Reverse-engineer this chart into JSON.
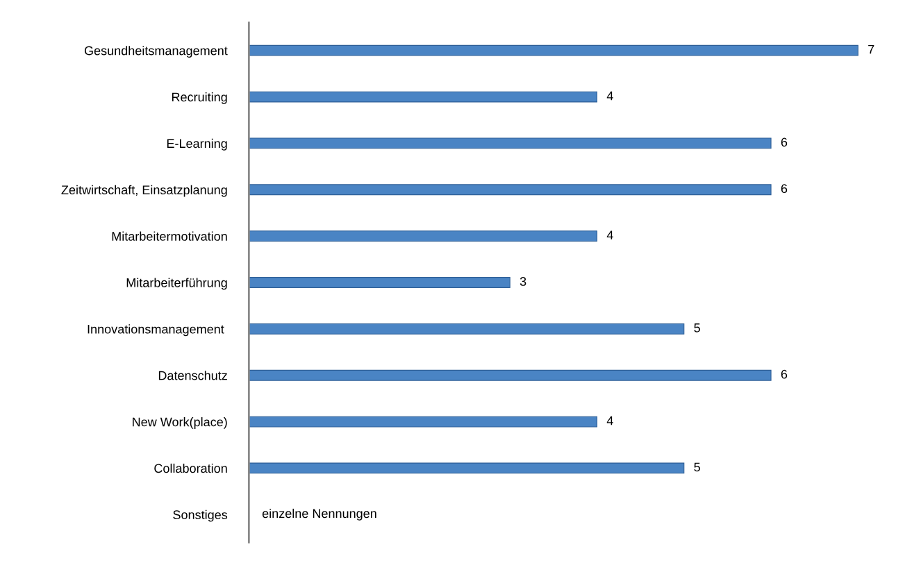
{
  "chart_data": {
    "type": "bar",
    "orientation": "horizontal",
    "categories": [
      "Gesundheitsmanagement",
      "Recruiting",
      "E-Learning",
      "Zeitwirtschaft, Einsatzplanung",
      "Mitarbeitermotivation",
      "Mitarbeiterführung",
      "Innovationsmanagement ",
      "Datenschutz",
      "New Work(place)",
      "Collaboration",
      "Sonstiges"
    ],
    "values": [
      7,
      4,
      6,
      6,
      4,
      3,
      5,
      6,
      4,
      5,
      null
    ],
    "color": "#4a84c4",
    "data_labels": true,
    "grid": false,
    "legend": false,
    "annotations": [
      "einzelne Nennungen"
    ]
  }
}
